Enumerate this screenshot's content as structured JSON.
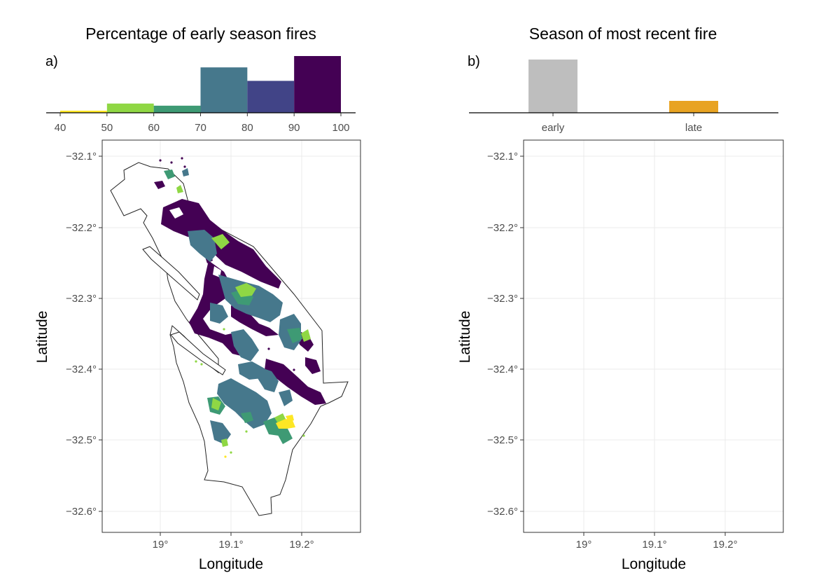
{
  "panel_a": {
    "title": "Percentage of early season fires",
    "label": "a)",
    "xlabel": "Longitude",
    "ylabel": "Latitude",
    "hist": {
      "tick_labels": [
        "40",
        "50",
        "60",
        "70",
        "80",
        "90",
        "100"
      ],
      "bins": [
        {
          "from": 40,
          "to": 50,
          "value": 3,
          "color": "#fde725"
        },
        {
          "from": 50,
          "to": 60,
          "value": 13,
          "color": "#8fd744"
        },
        {
          "from": 60,
          "to": 70,
          "value": 10,
          "color": "#3e9a74"
        },
        {
          "from": 70,
          "to": 80,
          "value": 64,
          "color": "#46788c"
        },
        {
          "from": 80,
          "to": 90,
          "value": 45,
          "color": "#414487"
        },
        {
          "from": 90,
          "to": 100,
          "value": 80,
          "color": "#440154"
        }
      ]
    }
  },
  "panel_b": {
    "title": "Season of most recent fire",
    "label": "b)",
    "xlabel": "Longitude",
    "ylabel": "Latitude",
    "bars": [
      {
        "label": "early",
        "value": 76,
        "color": "#bebebe"
      },
      {
        "label": "late",
        "value": 17,
        "color": "#e8a322"
      }
    ]
  },
  "axes": {
    "lat_ticks": [
      "−32.1°",
      "−32.2°",
      "−32.3°",
      "−32.4°",
      "−32.5°",
      "−32.6°"
    ],
    "lon_ticks": [
      "19°",
      "19.1°",
      "19.2°"
    ]
  }
}
